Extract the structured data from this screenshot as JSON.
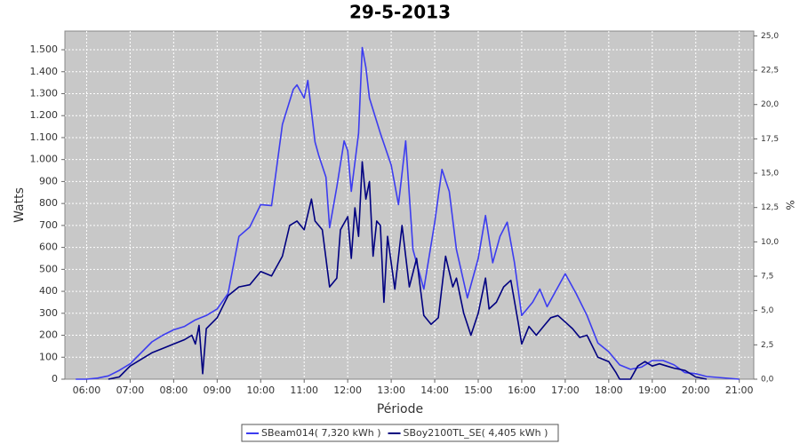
{
  "chart_data": {
    "type": "line",
    "title": "29-5-2013",
    "x_label": "Période",
    "y_label": "Watts",
    "y2_label": "%",
    "xlim": [
      "05:30",
      "21:20"
    ],
    "xticks": [
      "06:00",
      "07:00",
      "08:00",
      "09:00",
      "10:00",
      "11:00",
      "12:00",
      "13:00",
      "14:00",
      "15:00",
      "16:00",
      "17:00",
      "18:00",
      "19:00",
      "20:00",
      "21:00"
    ],
    "ylim": [
      0,
      1585
    ],
    "yticks": [
      0,
      100,
      200,
      300,
      400,
      500,
      600,
      700,
      800,
      900,
      {
        "value": 1000,
        "label": "1.000"
      },
      {
        "value": 1100,
        "label": "1.100"
      },
      {
        "value": 1200,
        "label": "1.200"
      },
      {
        "value": 1300,
        "label": "1.300"
      },
      {
        "value": 1400,
        "label": "1.400"
      },
      {
        "value": 1500,
        "label": "1.500"
      }
    ],
    "y2lim": [
      0,
      25.35
    ],
    "y2ticks": [
      {
        "value": 0,
        "label": "0,0"
      },
      {
        "value": 2.5,
        "label": "2,5"
      },
      {
        "value": 5,
        "label": "5,0"
      },
      {
        "value": 7.5,
        "label": "7,5"
      },
      {
        "value": 10,
        "label": "10,0"
      },
      {
        "value": 12.5,
        "label": "12,5"
      },
      {
        "value": 15,
        "label": "15,0"
      },
      {
        "value": 17.5,
        "label": "17,5"
      },
      {
        "value": 20,
        "label": "20,0"
      },
      {
        "value": 22.5,
        "label": "22,5"
      },
      {
        "value": 25,
        "label": "25,0"
      }
    ],
    "grid": true,
    "series": [
      {
        "name": "SBeam014( 7,320 kWh )",
        "color": "#3c3cf0",
        "x": [
          "05:45",
          "06:00",
          "06:15",
          "06:30",
          "06:45",
          "07:00",
          "07:15",
          "07:30",
          "07:45",
          "08:00",
          "08:15",
          "08:30",
          "08:45",
          "09:00",
          "09:15",
          "09:30",
          "09:45",
          "10:00",
          "10:15",
          "10:30",
          "10:45",
          "10:50",
          "11:00",
          "11:05",
          "11:15",
          "11:20",
          "11:30",
          "11:35",
          "11:45",
          "11:55",
          "12:00",
          "12:05",
          "12:15",
          "12:20",
          "12:25",
          "12:30",
          "12:45",
          "13:00",
          "13:10",
          "13:20",
          "13:30",
          "13:45",
          "14:00",
          "14:10",
          "14:20",
          "14:30",
          "14:45",
          "15:00",
          "15:10",
          "15:20",
          "15:30",
          "15:40",
          "15:50",
          "16:00",
          "16:15",
          "16:25",
          "16:35",
          "16:45",
          "17:00",
          "17:15",
          "17:30",
          "17:45",
          "18:00",
          "18:15",
          "18:30",
          "18:45",
          "19:00",
          "19:15",
          "19:30",
          "19:45",
          "20:00",
          "20:15",
          "20:30",
          "20:45",
          "21:00"
        ],
        "values": [
          0,
          0,
          5,
          15,
          40,
          70,
          120,
          170,
          200,
          225,
          240,
          270,
          290,
          320,
          390,
          650,
          693,
          795,
          790,
          1160,
          1320,
          1340,
          1280,
          1360,
          1080,
          1020,
          920,
          690,
          875,
          1085,
          1040,
          855,
          1120,
          1510,
          1420,
          1280,
          1120,
          975,
          795,
          1085,
          590,
          410,
          715,
          955,
          855,
          590,
          370,
          550,
          745,
          530,
          650,
          715,
          530,
          290,
          350,
          410,
          330,
          390,
          480,
          390,
          290,
          165,
          125,
          65,
          45,
          55,
          85,
          85,
          65,
          30,
          25,
          12,
          8,
          4,
          0
        ]
      },
      {
        "name": "SBoy2100TL_SE( 4,405 kWh )",
        "color": "#000080",
        "x": [
          "06:30",
          "06:45",
          "07:00",
          "07:15",
          "07:30",
          "07:45",
          "08:00",
          "08:15",
          "08:25",
          "08:30",
          "08:35",
          "08:40",
          "08:45",
          "09:00",
          "09:15",
          "09:30",
          "09:45",
          "10:00",
          "10:15",
          "10:30",
          "10:40",
          "10:50",
          "11:00",
          "11:10",
          "11:15",
          "11:25",
          "11:35",
          "11:45",
          "11:50",
          "12:00",
          "12:05",
          "12:10",
          "12:15",
          "12:20",
          "12:25",
          "12:30",
          "12:35",
          "12:40",
          "12:45",
          "12:50",
          "12:55",
          "13:05",
          "13:15",
          "13:25",
          "13:35",
          "13:45",
          "13:55",
          "14:05",
          "14:15",
          "14:25",
          "14:30",
          "14:40",
          "14:50",
          "15:00",
          "15:10",
          "15:15",
          "15:25",
          "15:35",
          "15:45",
          "15:55",
          "16:00",
          "16:10",
          "16:20",
          "16:30",
          "16:40",
          "16:50",
          "17:00",
          "17:10",
          "17:20",
          "17:30",
          "17:45",
          "18:00",
          "18:10",
          "18:15",
          "18:30",
          "18:40",
          "18:50",
          "19:00",
          "19:10",
          "19:20",
          "19:30",
          "19:45",
          "20:00",
          "20:15"
        ],
        "values": [
          0,
          10,
          60,
          90,
          120,
          140,
          160,
          180,
          200,
          160,
          245,
          25,
          230,
          280,
          380,
          420,
          430,
          490,
          470,
          560,
          700,
          720,
          680,
          820,
          720,
          680,
          420,
          460,
          680,
          740,
          550,
          780,
          650,
          990,
          820,
          900,
          560,
          720,
          700,
          350,
          650,
          410,
          700,
          420,
          550,
          290,
          250,
          280,
          560,
          420,
          460,
          300,
          200,
          300,
          460,
          320,
          350,
          420,
          450,
          260,
          160,
          240,
          200,
          240,
          280,
          290,
          260,
          230,
          190,
          200,
          100,
          80,
          30,
          0,
          0,
          60,
          80,
          60,
          70,
          60,
          50,
          40,
          10,
          0
        ]
      }
    ]
  }
}
